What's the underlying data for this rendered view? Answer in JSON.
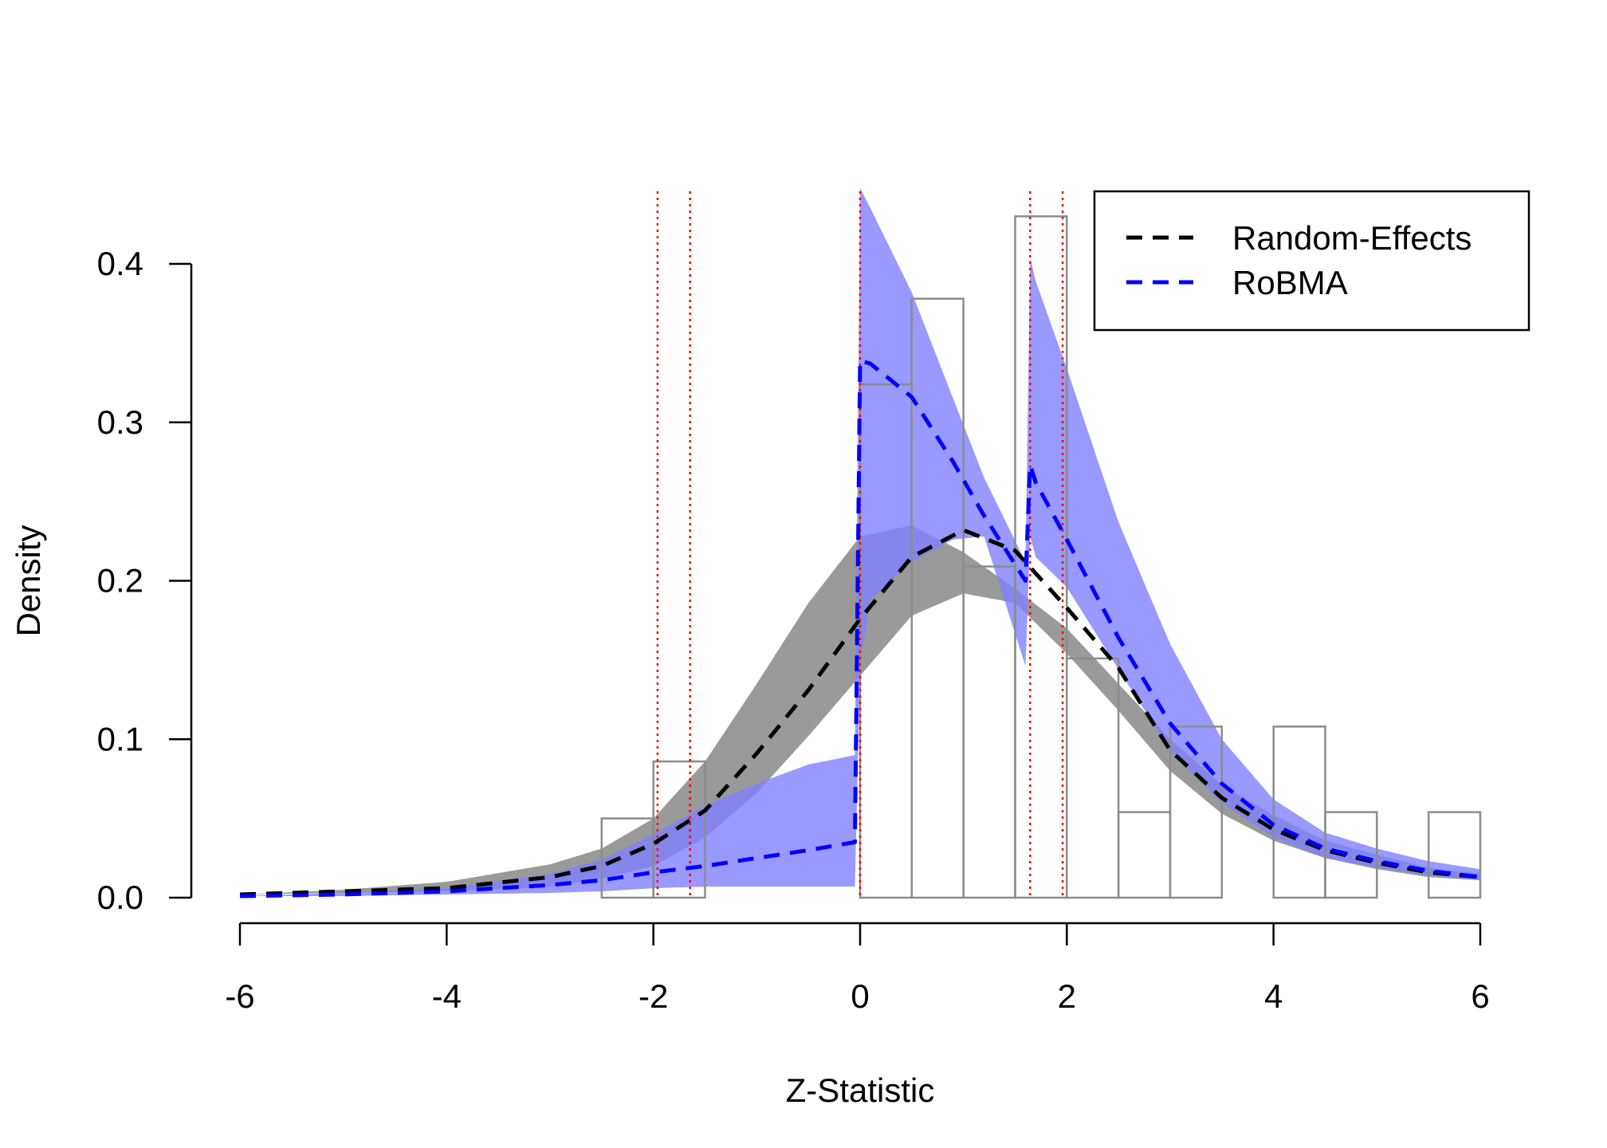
{
  "chart_data": {
    "type": "line",
    "title": "",
    "xlabel": "Z-Statistic",
    "ylabel": "Density",
    "xlim": [
      -6,
      6
    ],
    "ylim": [
      0,
      0.4
    ],
    "x_ticks": [
      -6,
      -4,
      -2,
      0,
      2,
      4,
      6
    ],
    "y_ticks": [
      0.0,
      0.1,
      0.2,
      0.3,
      0.4
    ],
    "x_tick_labels": [
      "-6",
      "-4",
      "-2",
      "0",
      "2",
      "4",
      "6"
    ],
    "y_tick_labels": [
      "0.0",
      "0.1",
      "0.2",
      "0.3",
      "0.4"
    ],
    "legend": {
      "position": "top-right",
      "entries": [
        "Random-Effects",
        "RoBMA"
      ]
    },
    "histogram": {
      "bin_width": 0.5,
      "bins": [
        {
          "x0": -2.5,
          "density": 0.05
        },
        {
          "x0": -2.0,
          "density": 0.086
        },
        {
          "x0": 0.0,
          "density": 0.324
        },
        {
          "x0": 0.5,
          "density": 0.378
        },
        {
          "x0": 1.0,
          "density": 0.209
        },
        {
          "x0": 1.5,
          "density": 0.43
        },
        {
          "x0": 2.0,
          "density": 0.151
        },
        {
          "x0": 2.5,
          "density": 0.054
        },
        {
          "x0": 3.0,
          "density": 0.108
        },
        {
          "x0": 4.0,
          "density": 0.108
        },
        {
          "x0": 4.5,
          "density": 0.054
        },
        {
          "x0": 5.5,
          "density": 0.054
        }
      ]
    },
    "reference_lines": [
      -1.96,
      -1.645,
      0,
      1.645,
      1.96
    ],
    "series": [
      {
        "name": "Random-Effects",
        "color": "#000000",
        "band_color": "#9a9a9a",
        "x": [
          -6,
          -5,
          -4,
          -3,
          -2.5,
          -2,
          -1.5,
          -1,
          -0.5,
          0,
          0.5,
          1,
          1.5,
          2,
          2.5,
          3,
          3.5,
          4,
          4.5,
          5,
          5.5,
          6
        ],
        "y": [
          0.002,
          0.004,
          0.006,
          0.013,
          0.02,
          0.034,
          0.055,
          0.091,
          0.131,
          0.176,
          0.215,
          0.232,
          0.219,
          0.183,
          0.145,
          0.093,
          0.063,
          0.043,
          0.03,
          0.022,
          0.016,
          0.013
        ],
        "lower": [
          0.002,
          0.003,
          0.004,
          0.007,
          0.012,
          0.02,
          0.038,
          0.066,
          0.102,
          0.14,
          0.178,
          0.192,
          0.186,
          0.154,
          0.118,
          0.08,
          0.053,
          0.036,
          0.025,
          0.018,
          0.013,
          0.011
        ],
        "upper": [
          0.002,
          0.005,
          0.01,
          0.021,
          0.031,
          0.05,
          0.086,
          0.135,
          0.186,
          0.228,
          0.235,
          0.218,
          0.195,
          0.17,
          0.135,
          0.1,
          0.071,
          0.052,
          0.036,
          0.027,
          0.019,
          0.015
        ]
      },
      {
        "name": "RoBMA",
        "color": "#0000ff",
        "band_color": "#8080ff",
        "x": [
          -6,
          -5,
          -4,
          -3,
          -2.5,
          -2,
          -1.5,
          -1,
          -0.5,
          -0.05,
          0,
          0.1,
          0.5,
          0.9,
          1.2,
          1.6,
          1.645,
          1.7,
          2,
          2.5,
          3,
          3.5,
          4,
          4.5,
          5,
          5.5,
          6
        ],
        "y": [
          0.001,
          0.002,
          0.004,
          0.008,
          0.011,
          0.016,
          0.02,
          0.025,
          0.03,
          0.035,
          0.339,
          0.337,
          0.316,
          0.275,
          0.241,
          0.2,
          0.273,
          0.262,
          0.226,
          0.164,
          0.11,
          0.072,
          0.046,
          0.031,
          0.023,
          0.017,
          0.013
        ],
        "lower": [
          0.001,
          0.001,
          0.002,
          0.003,
          0.004,
          0.006,
          0.007,
          0.007,
          0.007,
          0.007,
          0.148,
          0.188,
          0.212,
          0.226,
          0.228,
          0.146,
          0.228,
          0.215,
          0.196,
          0.144,
          0.093,
          0.06,
          0.038,
          0.025,
          0.019,
          0.014,
          0.011
        ],
        "upper": [
          0.001,
          0.003,
          0.006,
          0.015,
          0.024,
          0.04,
          0.058,
          0.072,
          0.084,
          0.09,
          0.448,
          0.435,
          0.382,
          0.315,
          0.265,
          0.212,
          0.404,
          0.389,
          0.334,
          0.237,
          0.16,
          0.1,
          0.062,
          0.041,
          0.031,
          0.023,
          0.018
        ]
      }
    ]
  }
}
